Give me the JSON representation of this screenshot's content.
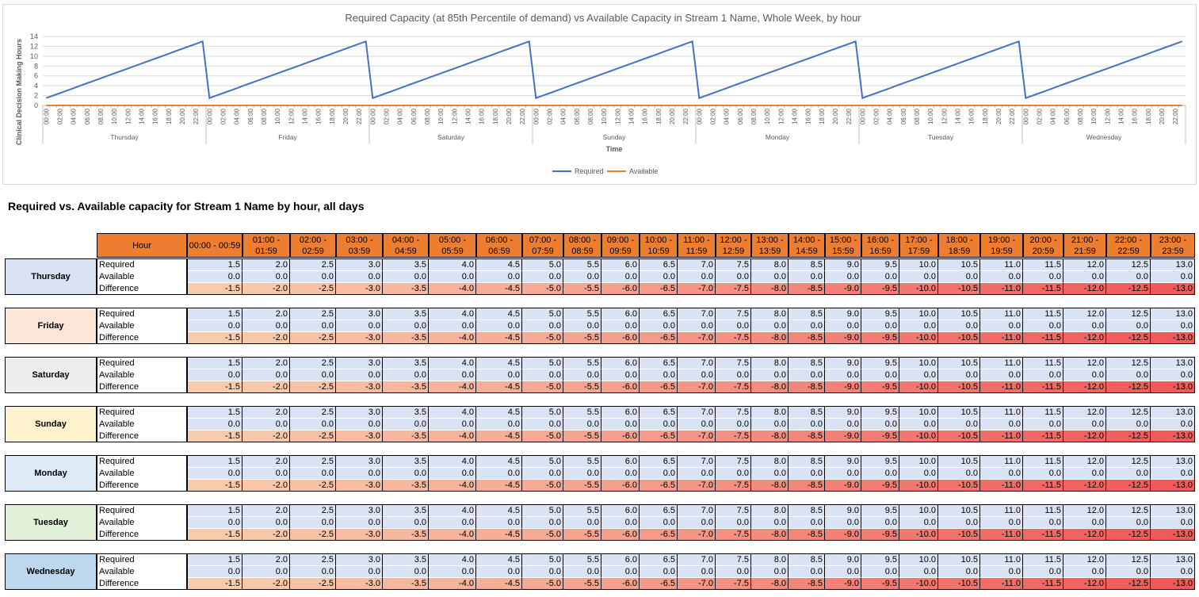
{
  "chart_data": {
    "type": "line",
    "title": "Required Capacity (at 85th Percentile of demand) vs Available Capacity in Stream 1 Name, Whole Week, by hour",
    "xlabel": "Time",
    "ylabel": "Clinical Decision Making Hours",
    "ylim": [
      0,
      14
    ],
    "yticks": [
      "0",
      "2",
      "4",
      "6",
      "8",
      "10",
      "12",
      "14"
    ],
    "days": [
      "Thursday",
      "Friday",
      "Saturday",
      "Sunday",
      "Monday",
      "Tuesday",
      "Wednesday"
    ],
    "hour_ticks": [
      "00:00",
      "02:00",
      "04:00",
      "06:00",
      "08:00",
      "10:00",
      "12:00",
      "14:00",
      "16:00",
      "18:00",
      "20:00",
      "22:00"
    ],
    "legend_position": "bottom",
    "series": [
      {
        "name": "Required",
        "color": "#4472c4",
        "values_per_day": [
          1.5,
          2.0,
          2.5,
          3.0,
          3.5,
          4.0,
          4.5,
          5.0,
          5.5,
          6.0,
          6.5,
          7.0,
          7.5,
          8.0,
          8.5,
          9.0,
          9.5,
          10.0,
          10.5,
          11.0,
          11.5,
          12.0,
          12.5,
          13.0
        ]
      },
      {
        "name": "Available",
        "color": "#ed7d31",
        "values_per_day": [
          0,
          0,
          0,
          0,
          0,
          0,
          0,
          0,
          0,
          0,
          0,
          0,
          0,
          0,
          0,
          0,
          0,
          0,
          0,
          0,
          0,
          0,
          0,
          0
        ]
      }
    ]
  },
  "table": {
    "title": "Required vs. Available capacity for Stream 1 Name by hour, all days",
    "hour_header": "Hour",
    "hours": [
      [
        "00:00 - 00:59",
        ""
      ],
      [
        "01:00 -",
        "01:59"
      ],
      [
        "02:00 -",
        "02:59"
      ],
      [
        "03:00 -",
        "03:59"
      ],
      [
        "04:00 -",
        "04:59"
      ],
      [
        "05:00 -",
        "05:59"
      ],
      [
        "06:00 -",
        "06:59"
      ],
      [
        "07:00 -",
        "07:59"
      ],
      [
        "08:00 -",
        "08:59"
      ],
      [
        "09:00 -",
        "09:59"
      ],
      [
        "10:00 -",
        "10:59"
      ],
      [
        "11:00 -",
        "11:59"
      ],
      [
        "12:00 -",
        "12:59"
      ],
      [
        "13:00 -",
        "13:59"
      ],
      [
        "14:00 -",
        "14:59"
      ],
      [
        "15:00 -",
        "15:59"
      ],
      [
        "16:00 -",
        "16:59"
      ],
      [
        "17:00 -",
        "17:59"
      ],
      [
        "18:00 -",
        "18:59"
      ],
      [
        "19:00 -",
        "19:59"
      ],
      [
        "20:00 -",
        "20:59"
      ],
      [
        "21:00 -",
        "21:59"
      ],
      [
        "22:00 -",
        "22:59"
      ],
      [
        "23:00 -",
        "23:59"
      ]
    ],
    "row_labels": [
      "Required",
      "Available",
      "Difference"
    ],
    "required": [
      "1.5",
      "2.0",
      "2.5",
      "3.0",
      "3.5",
      "4.0",
      "4.5",
      "5.0",
      "5.5",
      "6.0",
      "6.5",
      "7.0",
      "7.5",
      "8.0",
      "8.5",
      "9.0",
      "9.5",
      "10.0",
      "10.5",
      "11.0",
      "11.5",
      "12.0",
      "12.5",
      "13.0"
    ],
    "available": [
      "0.0",
      "0.0",
      "0.0",
      "0.0",
      "0.0",
      "0.0",
      "0.0",
      "0.0",
      "0.0",
      "0.0",
      "0.0",
      "0.0",
      "0.0",
      "0.0",
      "0.0",
      "0.0",
      "0.0",
      "0.0",
      "0.0",
      "0.0",
      "0.0",
      "0.0",
      "0.0",
      "0.0"
    ],
    "difference": [
      "-1.5",
      "-2.0",
      "-2.5",
      "-3.0",
      "-3.5",
      "-4.0",
      "-4.5",
      "-5.0",
      "-5.5",
      "-6.0",
      "-6.5",
      "-7.0",
      "-7.5",
      "-8.0",
      "-8.5",
      "-9.0",
      "-9.5",
      "-10.0",
      "-10.5",
      "-11.0",
      "-11.5",
      "-12.0",
      "-12.5",
      "-13.0"
    ],
    "days": [
      {
        "name": "Thursday",
        "color": "#dae3f3"
      },
      {
        "name": "Friday",
        "color": "#fbe5d6"
      },
      {
        "name": "Saturday",
        "color": "#ededed"
      },
      {
        "name": "Sunday",
        "color": "#fff2cc"
      },
      {
        "name": "Monday",
        "color": "#deebf7"
      },
      {
        "name": "Tuesday",
        "color": "#e2f0d9"
      },
      {
        "name": "Wednesday",
        "color": "#bdd7ee"
      }
    ],
    "value_cell_color": "#dae3f3"
  }
}
